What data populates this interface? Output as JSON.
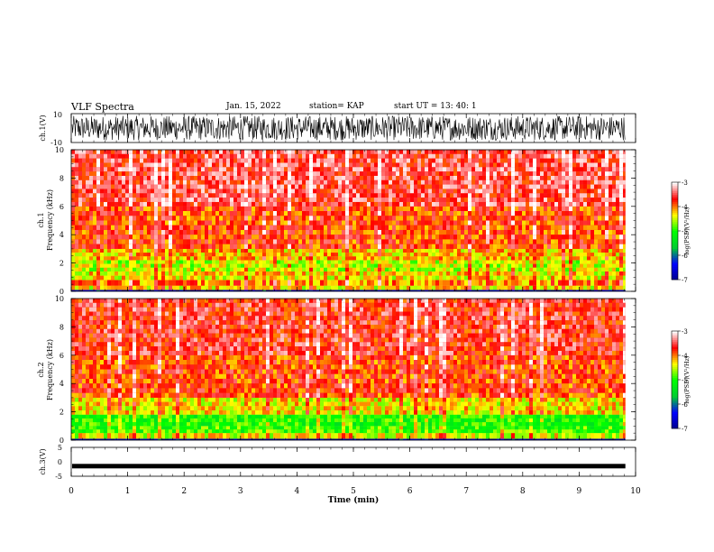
{
  "header": {
    "title": "VLF Spectra",
    "date": "Jan. 15, 2022",
    "station": "station= KAP",
    "start": "start  UT =   13: 40: 1"
  },
  "chart_data": [
    {
      "type": "line",
      "name": "ch1-waveform",
      "ylabel": "ch.1(V)",
      "ylim": [
        -10,
        10
      ],
      "yticks": [
        "10",
        "-10"
      ],
      "xlim": [
        0,
        10
      ],
      "data_end_x": 9.82,
      "description_of_signal": "dense noisy waveform spanning roughly -8 to 9 V"
    },
    {
      "type": "heatmap",
      "name": "ch1-spectrogram",
      "ylabel": "Frequency (kHz)",
      "channel": "ch.1",
      "ylim": [
        0,
        10
      ],
      "yticks": [
        "0",
        "2",
        "4",
        "6",
        "8",
        "10"
      ],
      "xlim": [
        0,
        10
      ],
      "data_end_x": 9.82,
      "colorbar": {
        "label": "log(PSD)(V²/Hz)",
        "ticks": [
          "-3",
          "-4",
          "-5",
          "-6",
          "-7"
        ],
        "range": [
          -7,
          -3
        ]
      },
      "bands": [
        {
          "f_low": 0.0,
          "f_high": 0.1,
          "level": -6.8
        },
        {
          "f_low": 0.1,
          "f_high": 0.4,
          "level": -4.3
        },
        {
          "f_low": 0.4,
          "f_high": 0.8,
          "level": -4.0
        },
        {
          "f_low": 0.8,
          "f_high": 1.4,
          "level": -4.3
        },
        {
          "f_low": 1.4,
          "f_high": 2.2,
          "level": -4.5
        },
        {
          "f_low": 2.2,
          "f_high": 3.0,
          "level": -4.2
        },
        {
          "f_low": 3.0,
          "f_high": 6.0,
          "level": -3.8
        },
        {
          "f_low": 6.0,
          "f_high": 10.0,
          "level": -3.5
        }
      ]
    },
    {
      "type": "heatmap",
      "name": "ch2-spectrogram",
      "ylabel": "Frequency (kHz)",
      "channel": "ch.2",
      "ylim": [
        0,
        10
      ],
      "yticks": [
        "0",
        "2",
        "4",
        "6",
        "8",
        "10"
      ],
      "xlim": [
        0,
        10
      ],
      "data_end_x": 9.82,
      "colorbar": {
        "label": "log(PSD)(V²/Hz)",
        "ticks": [
          "-3",
          "-4",
          "-5",
          "-6",
          "-7"
        ],
        "range": [
          -7,
          -3
        ]
      },
      "bands": [
        {
          "f_low": 0.0,
          "f_high": 0.1,
          "level": -6.8
        },
        {
          "f_low": 0.1,
          "f_high": 0.5,
          "level": -4.4
        },
        {
          "f_low": 0.5,
          "f_high": 1.0,
          "level": -4.9
        },
        {
          "f_low": 1.0,
          "f_high": 1.8,
          "level": -5.0
        },
        {
          "f_low": 1.8,
          "f_high": 3.0,
          "level": -4.3
        },
        {
          "f_low": 3.0,
          "f_high": 6.0,
          "level": -3.8
        },
        {
          "f_low": 6.0,
          "f_high": 10.0,
          "level": -3.6
        }
      ]
    },
    {
      "type": "line",
      "name": "ch3-waveform",
      "ylabel": "ch.3(V)",
      "ylim": [
        -5,
        5
      ],
      "yticks": [
        "5",
        "0",
        "-5"
      ],
      "xlim": [
        0,
        10
      ],
      "data_end_x": 9.82,
      "level": -1.5,
      "description_of_signal": "thin nearly constant band near -1.5 V"
    }
  ],
  "x_axis": {
    "label": "Time (min)",
    "ticks": [
      "0",
      "1",
      "2",
      "3",
      "4",
      "5",
      "6",
      "7",
      "8",
      "9",
      "10"
    ]
  },
  "colors": {
    "colormap": [
      "#00008b",
      "#0000ff",
      "#00cc33",
      "#00ff00",
      "#ffff00",
      "#ff0000",
      "#ffffff"
    ]
  }
}
